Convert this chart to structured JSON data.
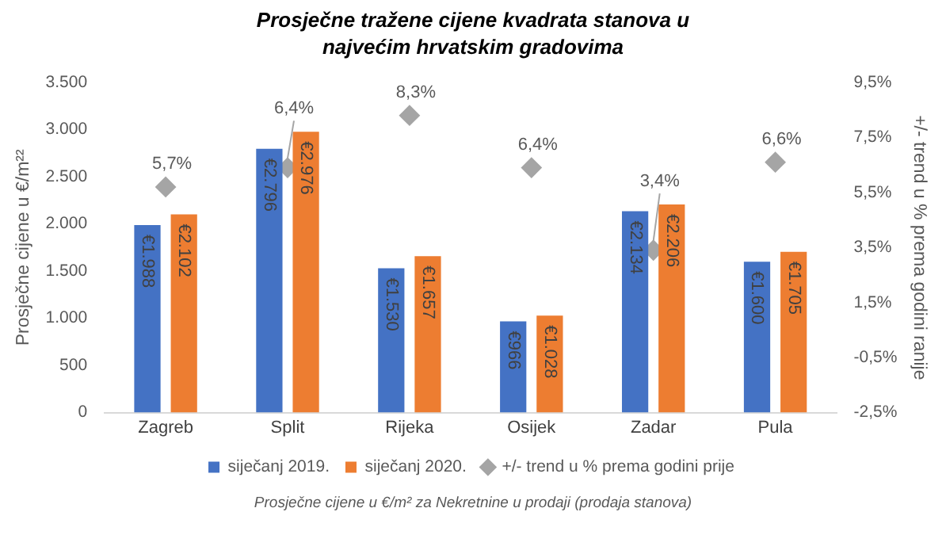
{
  "chart_data": {
    "type": "bar",
    "title": "Prosječne tražene cijene kvadrata stanova u najvećim hrvatskim gradovima",
    "ylabel": "Prosječne cijene u €/m²²",
    "y2label": "+/- trend u % prema godini ranije",
    "categories": [
      "Zagreb",
      "Split",
      "Rijeka",
      "Osijek",
      "Zadar",
      "Pula"
    ],
    "series": [
      {
        "name": "siječanj 2019.",
        "color": "#4472c4",
        "values": [
          1988,
          2796,
          1530,
          966,
          2134,
          1600
        ],
        "value_labels": [
          "€1.988",
          "€2.796",
          "€1.530",
          "€966",
          "€2.134",
          "€1.600"
        ]
      },
      {
        "name": "siječanj 2020.",
        "color": "#ed7d31",
        "values": [
          2102,
          2976,
          1657,
          1028,
          2206,
          1705
        ],
        "value_labels": [
          "€2.102",
          "€2.976",
          "€1.657",
          "€1.028",
          "€2.206",
          "€1.705"
        ]
      },
      {
        "name": "+/- trend u % prema godini prije",
        "type": "scatter",
        "axis": "y2",
        "color": "#a5a5a5",
        "values": [
          5.7,
          6.4,
          8.3,
          6.4,
          3.4,
          6.6
        ],
        "value_labels": [
          "5,7%",
          "6,4%",
          "8,3%",
          "6,4%",
          "3,4%",
          "6,6%"
        ]
      }
    ],
    "ylim": [
      0,
      3500
    ],
    "yticks": [
      0,
      500,
      {
        "value": 1000,
        "label": "1.000"
      },
      {
        "value": 1500,
        "label": "1.500"
      },
      {
        "value": 2000,
        "label": "2.000"
      },
      {
        "value": 2500,
        "label": "2.500"
      },
      {
        "value": 3000,
        "label": "3.000"
      },
      {
        "value": 3500,
        "label": "3.500"
      }
    ],
    "y2lim": [
      -2.5,
      9.5
    ],
    "y2ticks": [
      {
        "value": -2.5,
        "label": "-2,5%"
      },
      {
        "value": -0.5,
        "label": "-0,5%"
      },
      {
        "value": 1.5,
        "label": "1,5%"
      },
      {
        "value": 3.5,
        "label": "3,5%"
      },
      {
        "value": 5.5,
        "label": "5,5%"
      },
      {
        "value": 7.5,
        "label": "7,5%"
      },
      {
        "value": 9.5,
        "label": "9,5%"
      }
    ],
    "grid": false,
    "legend": "bottom",
    "marker": "diamond",
    "annotations": [
      "Prosječne cijene u €/m² za Nekretnine u prodaji (prodaja stanova)"
    ]
  }
}
